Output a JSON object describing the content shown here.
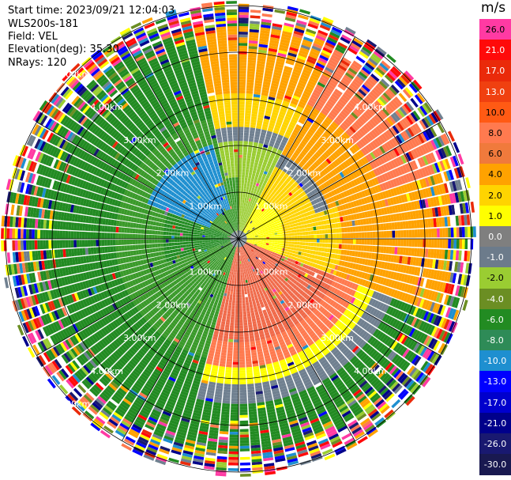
{
  "header": {
    "start_time": "Start time: 2023/09/21 12:04:03",
    "instrument": "WLS200s-181",
    "field": "Field: VEL",
    "elevation": "Elevation(deg): 35.30",
    "nrays": "NRays: 120"
  },
  "colorbar": {
    "title": "m/s",
    "labels": [
      "26.0",
      "21.0",
      "17.0",
      "13.0",
      "10.0",
      "8.0",
      "6.0",
      "4.0",
      "2.0",
      "1.0",
      "0.0",
      "-1.0",
      "-2.0",
      "-4.0",
      "-6.0",
      "-8.0",
      "-10.0",
      "-13.0",
      "-17.0",
      "-21.0",
      "-26.0",
      "-30.0"
    ],
    "colors": [
      "#ff3aa3",
      "#ff0a0a",
      "#ea2a0a",
      "#f04010",
      "#ff5a14",
      "#ff7a4f",
      "#f07a3c",
      "#ffa200",
      "#ffd400",
      "#ffff00",
      "#7f7f7f",
      "#6c7b8b",
      "#9acd32",
      "#6b8e23",
      "#228b22",
      "#2e8b57",
      "#1e8fd0",
      "#0000ff",
      "#0000cd",
      "#00008b",
      "#191970",
      "#191950"
    ]
  },
  "range_rings": [
    "1.00km",
    "2.00km",
    "3.00km",
    "4.00km",
    "5.00km"
  ],
  "palette": {
    "dark_green": "#228b22",
    "green": "#3a9a2a",
    "yellow_green": "#9acd32",
    "olive": "#6b8e23",
    "blue": "#1e8fd0",
    "gray": "#708090",
    "yellow": "#ffff00",
    "gold": "#ffd400",
    "orange": "#ffa200",
    "salmon": "#ff7a4f",
    "coral": "#f06a4a",
    "noise": [
      "#ff3aa3",
      "#ff0a0a",
      "#0000ff",
      "#00008b",
      "#191970",
      "#ffff00",
      "#ffa200",
      "#228b22",
      "#9acd32",
      "#708090",
      "#ff7a4f",
      "#ffffff",
      "#1e8fd0",
      "#6b8e23",
      "#ea2a0a"
    ]
  }
}
